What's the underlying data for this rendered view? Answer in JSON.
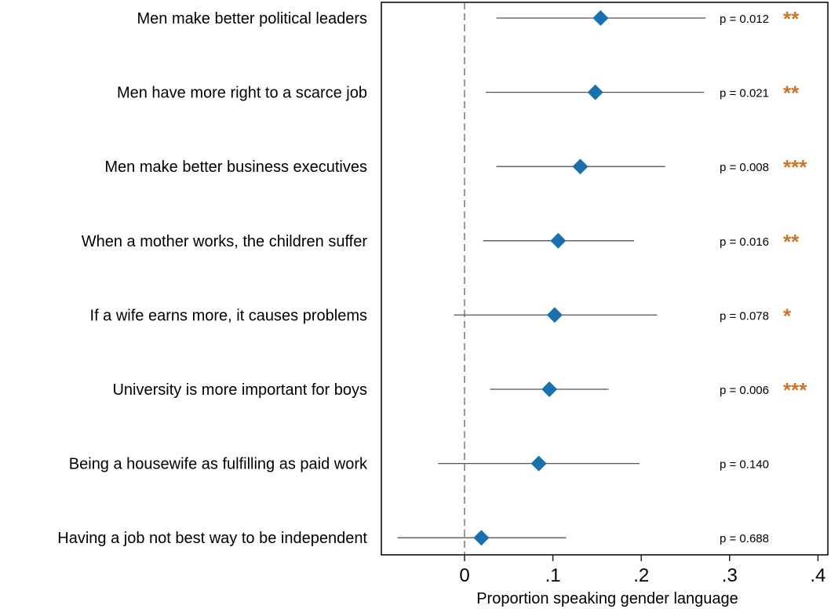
{
  "chart_data": {
    "type": "scatter",
    "xlabel": "Proportion speaking gender language",
    "xlim": [
      -0.095,
      0.41
    ],
    "xticks": [
      {
        "value": 0,
        "label": "0"
      },
      {
        "value": 0.1,
        "label": ".1"
      },
      {
        "value": 0.2,
        "label": ".2"
      },
      {
        "value": 0.3,
        "label": ".3"
      },
      {
        "value": 0.4,
        "label": ".4"
      }
    ],
    "reference_line": {
      "x": 0,
      "style": "dashed"
    },
    "marker": "diamond",
    "colors": {
      "marker": "#1a6fad",
      "ci_line": "#555555",
      "stars": "#c8762a",
      "frame": "#000000"
    },
    "rows": [
      {
        "label": "Men make better political leaders",
        "estimate": 0.154,
        "ci": [
          0.036,
          0.273
        ],
        "p_text": "p = 0.012",
        "stars": "**"
      },
      {
        "label": "Men have more right to a scarce job",
        "estimate": 0.148,
        "ci": [
          0.024,
          0.271
        ],
        "p_text": "p = 0.021",
        "stars": "**"
      },
      {
        "label": "Men make better business executives",
        "estimate": 0.131,
        "ci": [
          0.036,
          0.227
        ],
        "p_text": "p = 0.008",
        "stars": "***"
      },
      {
        "label": "When a mother works, the children suffer",
        "estimate": 0.106,
        "ci": [
          0.021,
          0.192
        ],
        "p_text": "p = 0.016",
        "stars": "**"
      },
      {
        "label": "If a wife earns more, it causes problems",
        "estimate": 0.102,
        "ci": [
          -0.012,
          0.218
        ],
        "p_text": "p = 0.078",
        "stars": "*"
      },
      {
        "label": "University is more important for boys",
        "estimate": 0.096,
        "ci": [
          0.029,
          0.163
        ],
        "p_text": "p = 0.006",
        "stars": "***"
      },
      {
        "label": "Being a housewife as fulfilling as paid work",
        "estimate": 0.084,
        "ci": [
          -0.03,
          0.198
        ],
        "p_text": "p = 0.140",
        "stars": ""
      },
      {
        "label": "Having a job not best way to be independent",
        "estimate": 0.019,
        "ci": [
          -0.076,
          0.115
        ],
        "p_text": "p = 0.688",
        "stars": ""
      }
    ]
  }
}
